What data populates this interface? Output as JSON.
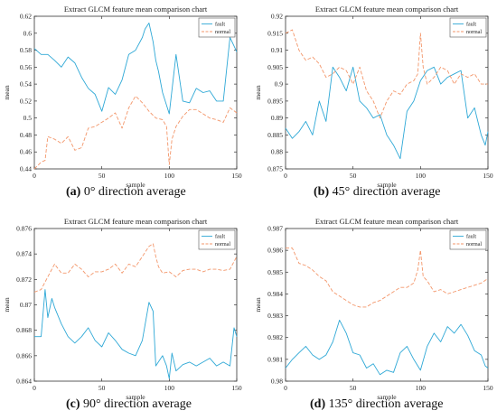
{
  "colors": {
    "fault": "#2ea8d6",
    "normal": "#f3966a",
    "axis": "#333333"
  },
  "chart_data": [
    {
      "type": "line",
      "title": "Extract GLCM feature mean comparison chart",
      "xlabel": "sample",
      "ylabel": "mean",
      "xlim": [
        0,
        150
      ],
      "ylim": [
        0.44,
        0.62
      ],
      "xticks": [
        0,
        50,
        100,
        150
      ],
      "yticks": [
        0.44,
        0.46,
        0.48,
        0.5,
        0.52,
        0.54,
        0.56,
        0.58,
        0.6,
        0.62
      ],
      "ytick_labels": [
        "0.44",
        "0.46",
        "0.48",
        "0.5",
        "0.52",
        "0.54",
        "0.56",
        "0.58",
        "0.6",
        "0.62"
      ],
      "grid": false,
      "legend": "top-right",
      "series": [
        {
          "name": "fault",
          "style": "solid",
          "x": [
            0,
            5,
            10,
            15,
            20,
            25,
            30,
            35,
            40,
            45,
            50,
            55,
            60,
            65,
            70,
            75,
            80,
            82,
            85,
            88,
            90,
            92,
            95,
            100,
            105,
            110,
            115,
            120,
            125,
            130,
            135,
            140,
            145,
            148,
            150
          ],
          "values": [
            0.582,
            0.575,
            0.575,
            0.568,
            0.56,
            0.572,
            0.565,
            0.548,
            0.535,
            0.528,
            0.508,
            0.536,
            0.528,
            0.545,
            0.575,
            0.58,
            0.595,
            0.605,
            0.612,
            0.59,
            0.568,
            0.555,
            0.53,
            0.505,
            0.575,
            0.52,
            0.518,
            0.535,
            0.53,
            0.532,
            0.52,
            0.52,
            0.595,
            0.585,
            0.578
          ]
        },
        {
          "name": "normal",
          "style": "dashed",
          "x": [
            0,
            5,
            8,
            10,
            15,
            20,
            25,
            30,
            35,
            40,
            45,
            50,
            55,
            60,
            65,
            70,
            75,
            80,
            85,
            90,
            95,
            98,
            100,
            102,
            105,
            110,
            115,
            120,
            125,
            130,
            135,
            140,
            145,
            150
          ],
          "values": [
            0.44,
            0.448,
            0.45,
            0.478,
            0.475,
            0.47,
            0.478,
            0.462,
            0.465,
            0.488,
            0.49,
            0.495,
            0.5,
            0.506,
            0.488,
            0.512,
            0.526,
            0.518,
            0.508,
            0.5,
            0.498,
            0.49,
            0.445,
            0.475,
            0.49,
            0.502,
            0.51,
            0.51,
            0.505,
            0.5,
            0.498,
            0.495,
            0.512,
            0.506
          ]
        }
      ]
    },
    {
      "type": "line",
      "title": "Extract GLCM feature mean comparison chart",
      "xlabel": "sample",
      "ylabel": "mean",
      "xlim": [
        0,
        150
      ],
      "ylim": [
        0.875,
        0.92
      ],
      "xticks": [
        0,
        50,
        100,
        150
      ],
      "yticks": [
        0.875,
        0.88,
        0.885,
        0.89,
        0.895,
        0.9,
        0.905,
        0.91,
        0.915,
        0.92
      ],
      "ytick_labels": [
        "0.875",
        "0.88",
        "0.885",
        "0.89",
        "0.895",
        "0.9",
        "0.905",
        "0.91",
        "0.915",
        "0.92"
      ],
      "grid": false,
      "legend": "top-right",
      "series": [
        {
          "name": "fault",
          "style": "solid",
          "x": [
            0,
            5,
            10,
            15,
            20,
            25,
            30,
            35,
            40,
            45,
            50,
            55,
            60,
            65,
            70,
            75,
            80,
            85,
            90,
            95,
            100,
            105,
            110,
            115,
            120,
            125,
            130,
            135,
            140,
            145,
            148,
            150
          ],
          "values": [
            0.887,
            0.884,
            0.886,
            0.889,
            0.885,
            0.895,
            0.889,
            0.905,
            0.902,
            0.898,
            0.905,
            0.895,
            0.893,
            0.89,
            0.891,
            0.885,
            0.882,
            0.878,
            0.892,
            0.895,
            0.901,
            0.904,
            0.905,
            0.9,
            0.902,
            0.903,
            0.904,
            0.89,
            0.893,
            0.885,
            0.882,
            0.886
          ]
        },
        {
          "name": "normal",
          "style": "dashed",
          "x": [
            0,
            5,
            10,
            15,
            20,
            25,
            30,
            35,
            40,
            45,
            50,
            55,
            60,
            65,
            70,
            75,
            80,
            85,
            90,
            95,
            98,
            100,
            102,
            105,
            110,
            115,
            120,
            125,
            130,
            135,
            140,
            145,
            150
          ],
          "values": [
            0.915,
            0.916,
            0.91,
            0.907,
            0.908,
            0.906,
            0.902,
            0.903,
            0.905,
            0.904,
            0.9,
            0.905,
            0.898,
            0.895,
            0.89,
            0.895,
            0.898,
            0.897,
            0.9,
            0.901,
            0.903,
            0.915,
            0.905,
            0.9,
            0.902,
            0.905,
            0.904,
            0.9,
            0.903,
            0.902,
            0.903,
            0.9,
            0.9
          ]
        }
      ]
    },
    {
      "type": "line",
      "title": "Extract GLCM feature mean comparison chart",
      "xlabel": "sample",
      "ylabel": "mean",
      "xlim": [
        0,
        150
      ],
      "ylim": [
        0.864,
        0.876
      ],
      "xticks": [
        0,
        50,
        100,
        150
      ],
      "yticks": [
        0.864,
        0.866,
        0.868,
        0.87,
        0.872,
        0.874,
        0.876
      ],
      "ytick_labels": [
        "0.864",
        "0.866",
        "0.868",
        "0.87",
        "0.872",
        "0.874",
        "0.876"
      ],
      "grid": false,
      "legend": "top-right",
      "series": [
        {
          "name": "fault",
          "style": "solid",
          "x": [
            0,
            3,
            5,
            8,
            10,
            13,
            15,
            20,
            25,
            30,
            35,
            40,
            45,
            50,
            55,
            60,
            65,
            70,
            75,
            80,
            85,
            88,
            90,
            95,
            98,
            100,
            102,
            105,
            110,
            115,
            120,
            125,
            130,
            135,
            140,
            145,
            148,
            150
          ],
          "values": [
            0.8675,
            0.8675,
            0.8675,
            0.8712,
            0.869,
            0.8705,
            0.8698,
            0.8685,
            0.8675,
            0.867,
            0.8675,
            0.8682,
            0.8672,
            0.8667,
            0.8678,
            0.8672,
            0.8665,
            0.8662,
            0.866,
            0.8672,
            0.8702,
            0.8695,
            0.8652,
            0.866,
            0.8652,
            0.8642,
            0.8662,
            0.8648,
            0.8653,
            0.8655,
            0.8652,
            0.8655,
            0.8658,
            0.8652,
            0.8655,
            0.8652,
            0.8682,
            0.8675
          ]
        },
        {
          "name": "normal",
          "style": "dashed",
          "x": [
            0,
            5,
            10,
            15,
            20,
            25,
            30,
            35,
            40,
            45,
            50,
            55,
            60,
            65,
            70,
            75,
            80,
            85,
            88,
            90,
            92,
            95,
            100,
            105,
            110,
            115,
            120,
            125,
            130,
            135,
            140,
            145,
            150
          ],
          "values": [
            0.871,
            0.8712,
            0.8722,
            0.8732,
            0.8725,
            0.8725,
            0.8732,
            0.8728,
            0.8722,
            0.8726,
            0.8726,
            0.8728,
            0.8732,
            0.8725,
            0.8732,
            0.873,
            0.8738,
            0.8746,
            0.8748,
            0.8738,
            0.873,
            0.8725,
            0.8726,
            0.8722,
            0.8727,
            0.8728,
            0.8728,
            0.8726,
            0.8728,
            0.8728,
            0.8727,
            0.8728,
            0.8738
          ]
        }
      ]
    },
    {
      "type": "line",
      "title": "Extract GLCM feature mean comparison chart",
      "xlabel": "sample",
      "ylabel": "mean",
      "xlim": [
        0,
        150
      ],
      "ylim": [
        0.98,
        0.987
      ],
      "xticks": [
        0,
        50,
        100,
        150
      ],
      "yticks": [
        0.98,
        0.981,
        0.982,
        0.983,
        0.984,
        0.985,
        0.986,
        0.987
      ],
      "ytick_labels": [
        "0.98",
        "0.981",
        "0.982",
        "0.983",
        "0.984",
        "0.985",
        "0.986",
        "0.987"
      ],
      "grid": false,
      "legend": "top-right",
      "series": [
        {
          "name": "fault",
          "style": "solid",
          "x": [
            0,
            5,
            10,
            15,
            20,
            25,
            30,
            35,
            40,
            45,
            50,
            55,
            60,
            65,
            70,
            75,
            80,
            85,
            90,
            95,
            100,
            105,
            110,
            115,
            120,
            125,
            130,
            135,
            140,
            145,
            148,
            150
          ],
          "values": [
            0.9806,
            0.981,
            0.9813,
            0.9816,
            0.9812,
            0.981,
            0.9812,
            0.9818,
            0.9828,
            0.9822,
            0.9813,
            0.9812,
            0.9806,
            0.9808,
            0.9803,
            0.9805,
            0.9804,
            0.9813,
            0.9816,
            0.981,
            0.9805,
            0.9816,
            0.9822,
            0.9818,
            0.9825,
            0.9822,
            0.9826,
            0.9821,
            0.9814,
            0.9812,
            0.9807,
            0.9806
          ]
        },
        {
          "name": "normal",
          "style": "dashed",
          "x": [
            0,
            5,
            10,
            15,
            20,
            25,
            30,
            35,
            40,
            45,
            50,
            55,
            60,
            65,
            70,
            75,
            80,
            85,
            90,
            95,
            98,
            100,
            102,
            105,
            110,
            115,
            120,
            125,
            130,
            135,
            140,
            145,
            150
          ],
          "values": [
            0.9861,
            0.9861,
            0.9854,
            0.9853,
            0.9851,
            0.9848,
            0.9846,
            0.9841,
            0.9839,
            0.9837,
            0.9835,
            0.9834,
            0.9834,
            0.9836,
            0.9837,
            0.9839,
            0.9841,
            0.9843,
            0.9843,
            0.9845,
            0.9851,
            0.986,
            0.9848,
            0.9846,
            0.9841,
            0.9842,
            0.984,
            0.9841,
            0.9842,
            0.9843,
            0.9844,
            0.9845,
            0.9847
          ]
        }
      ]
    }
  ],
  "captions": [
    {
      "letter": "(a)",
      "text": " 0° direction average"
    },
    {
      "letter": "(b)",
      "text": " 45° direction average"
    },
    {
      "letter": "(c)",
      "text": " 90° direction average"
    },
    {
      "letter": "(d)",
      "text": " 135° direction average"
    }
  ]
}
